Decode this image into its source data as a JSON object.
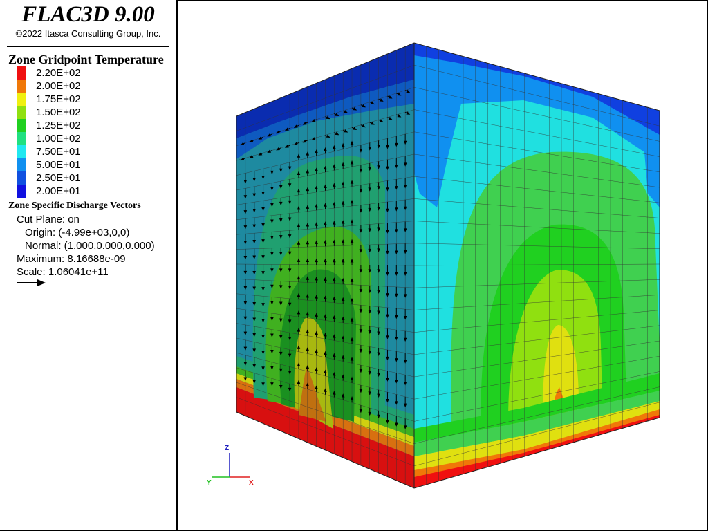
{
  "app": {
    "title": "FLAC3D 9.00",
    "copyright": "©2022 Itasca Consulting Group, Inc."
  },
  "legend": {
    "contour_title": "Zone Gridpoint Temperature",
    "scale": [
      {
        "label": "2.20E+02",
        "color": "#f01010"
      },
      {
        "label": "2.00E+02",
        "color": "#f07808"
      },
      {
        "label": "1.75E+02",
        "color": "#f0f010"
      },
      {
        "label": "1.50E+02",
        "color": "#90e010"
      },
      {
        "label": "1.25E+02",
        "color": "#20d020"
      },
      {
        "label": "1.00E+02",
        "color": "#20e080"
      },
      {
        "label": "7.50E+01",
        "color": "#20e8f0"
      },
      {
        "label": "5.00E+01",
        "color": "#1090f0"
      },
      {
        "label": "2.50E+01",
        "color": "#1050e0"
      },
      {
        "label": "2.00E+01",
        "color": "#1010e0"
      }
    ],
    "vectors_title": "Zone Specific Discharge Vectors",
    "cut_plane": "Cut Plane: on",
    "origin": "Origin: (-4.99e+03,0,0)",
    "normal": "Normal: (1.000,0.000,0.000)",
    "maximum": "Maximum: 8.16688e-09",
    "scale_text": "Scale: 1.06041e+11"
  },
  "axes": {
    "z": "Z",
    "y": "Y",
    "x": "X",
    "z_color": "#2020c0",
    "y_color": "#20c020",
    "x_color": "#e02020"
  }
}
